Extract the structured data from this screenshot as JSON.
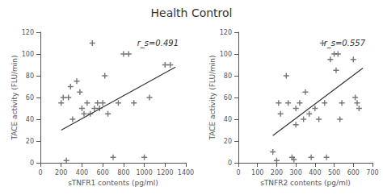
{
  "title": "Health Control",
  "chart_data": [
    {
      "type": "scatter",
      "xlabel": "sTNFR1 contents (pg/ml)",
      "ylabel": "TACE activity (FLU/min)",
      "annotation": "r_s=0.491",
      "xlim": [
        0,
        1400
      ],
      "ylim": [
        0,
        120
      ],
      "xticks": [
        0,
        200,
        400,
        600,
        800,
        1000,
        1200,
        1400
      ],
      "yticks": [
        0,
        20,
        40,
        60,
        80,
        100,
        120
      ],
      "grid": false,
      "series": [
        {
          "type": "scatter",
          "color": "#555555",
          "marker": "plus",
          "x": [
            200,
            220,
            250,
            270,
            290,
            310,
            350,
            380,
            400,
            420,
            450,
            480,
            500,
            520,
            550,
            570,
            600,
            620,
            650,
            700,
            750,
            800,
            850,
            900,
            1000,
            1050,
            1200,
            1250
          ],
          "values": [
            55,
            60,
            2,
            60,
            70,
            40,
            75,
            65,
            50,
            45,
            55,
            45,
            110,
            50,
            55,
            50,
            55,
            80,
            45,
            5,
            55,
            100,
            100,
            55,
            5,
            60,
            90,
            90
          ]
        },
        {
          "type": "line",
          "color": "#333333",
          "x": [
            200,
            1300
          ],
          "values": [
            30,
            88
          ]
        }
      ]
    },
    {
      "type": "scatter",
      "xlabel": "sTNFR2 contents (pg/ml)",
      "ylabel": "TACE activity (FLU/min)",
      "annotation": "r_s=0.557",
      "xlim": [
        0,
        700
      ],
      "ylim": [
        0,
        120
      ],
      "xticks": [
        0,
        100,
        200,
        300,
        400,
        500,
        600,
        700
      ],
      "yticks": [
        0,
        20,
        40,
        60,
        80,
        100,
        120
      ],
      "grid": false,
      "series": [
        {
          "type": "scatter",
          "color": "#555555",
          "marker": "plus",
          "x": [
            180,
            200,
            210,
            220,
            250,
            260,
            280,
            290,
            300,
            300,
            320,
            340,
            350,
            370,
            380,
            400,
            420,
            440,
            450,
            460,
            480,
            500,
            510,
            520,
            530,
            540,
            600,
            610,
            620,
            630
          ],
          "values": [
            10,
            2,
            55,
            45,
            80,
            55,
            5,
            3,
            50,
            35,
            55,
            40,
            65,
            45,
            5,
            50,
            40,
            110,
            55,
            5,
            95,
            100,
            85,
            100,
            40,
            55,
            95,
            60,
            55,
            50
          ]
        },
        {
          "type": "line",
          "color": "#333333",
          "x": [
            180,
            650
          ],
          "values": [
            25,
            87
          ]
        }
      ]
    }
  ]
}
